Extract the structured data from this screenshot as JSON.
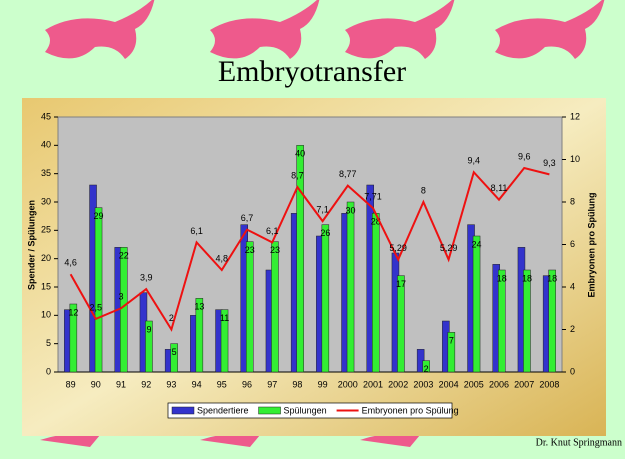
{
  "chart_data": {
    "type": "bar",
    "title": "Embryotransfer",
    "ylabel": "Spender / Spülungen",
    "y2label": "Embryonen pro Spülung",
    "footer": "Dr. Knut Springmann",
    "categories": [
      "89",
      "90",
      "91",
      "92",
      "93",
      "94",
      "95",
      "96",
      "97",
      "98",
      "99",
      "2000",
      "2001",
      "2002",
      "2003",
      "2004",
      "2005",
      "2006",
      "2007",
      "2008"
    ],
    "series": [
      {
        "name": "Spendertiere",
        "type": "bar",
        "color": "#3333cc",
        "values": [
          11,
          33,
          22,
          14,
          4,
          10,
          11,
          26,
          18,
          28,
          24,
          28,
          33,
          21,
          4,
          9,
          26,
          19,
          22,
          17
        ]
      },
      {
        "name": "Spülungen",
        "type": "bar",
        "color": "#33ee33",
        "values": [
          12,
          29,
          22,
          9,
          5,
          13,
          11,
          23,
          23,
          40,
          26,
          30,
          28,
          17,
          2,
          7,
          24,
          18,
          18,
          18
        ],
        "show_labels": true
      },
      {
        "name": "Embryonen pro Spülung",
        "type": "line",
        "axis": "y2",
        "color": "#ee1111",
        "values": [
          4.6,
          2.5,
          3,
          3.9,
          2,
          6.1,
          4.8,
          6.7,
          6.1,
          8.7,
          7.1,
          8.77,
          7.71,
          5.29,
          8,
          5.29,
          9.4,
          8.11,
          9.6,
          9.3
        ],
        "value_labels": [
          "4,6",
          "2,5",
          "3",
          "3,9",
          "2",
          "6,1",
          "4,8",
          "6,7",
          "6,1",
          "8,7",
          "7,1",
          "8,77",
          "7,71",
          "5,29",
          "8",
          "5,29",
          "9,4",
          "8,11",
          "9,6",
          "9,3"
        ]
      }
    ],
    "ylim": [
      0,
      45
    ],
    "yticks": [
      0,
      5,
      10,
      15,
      20,
      25,
      30,
      35,
      40,
      45
    ],
    "y2lim": [
      0,
      12
    ],
    "y2ticks": [
      0,
      2,
      4,
      6,
      8,
      10,
      12
    ],
    "legend": "bottom"
  }
}
